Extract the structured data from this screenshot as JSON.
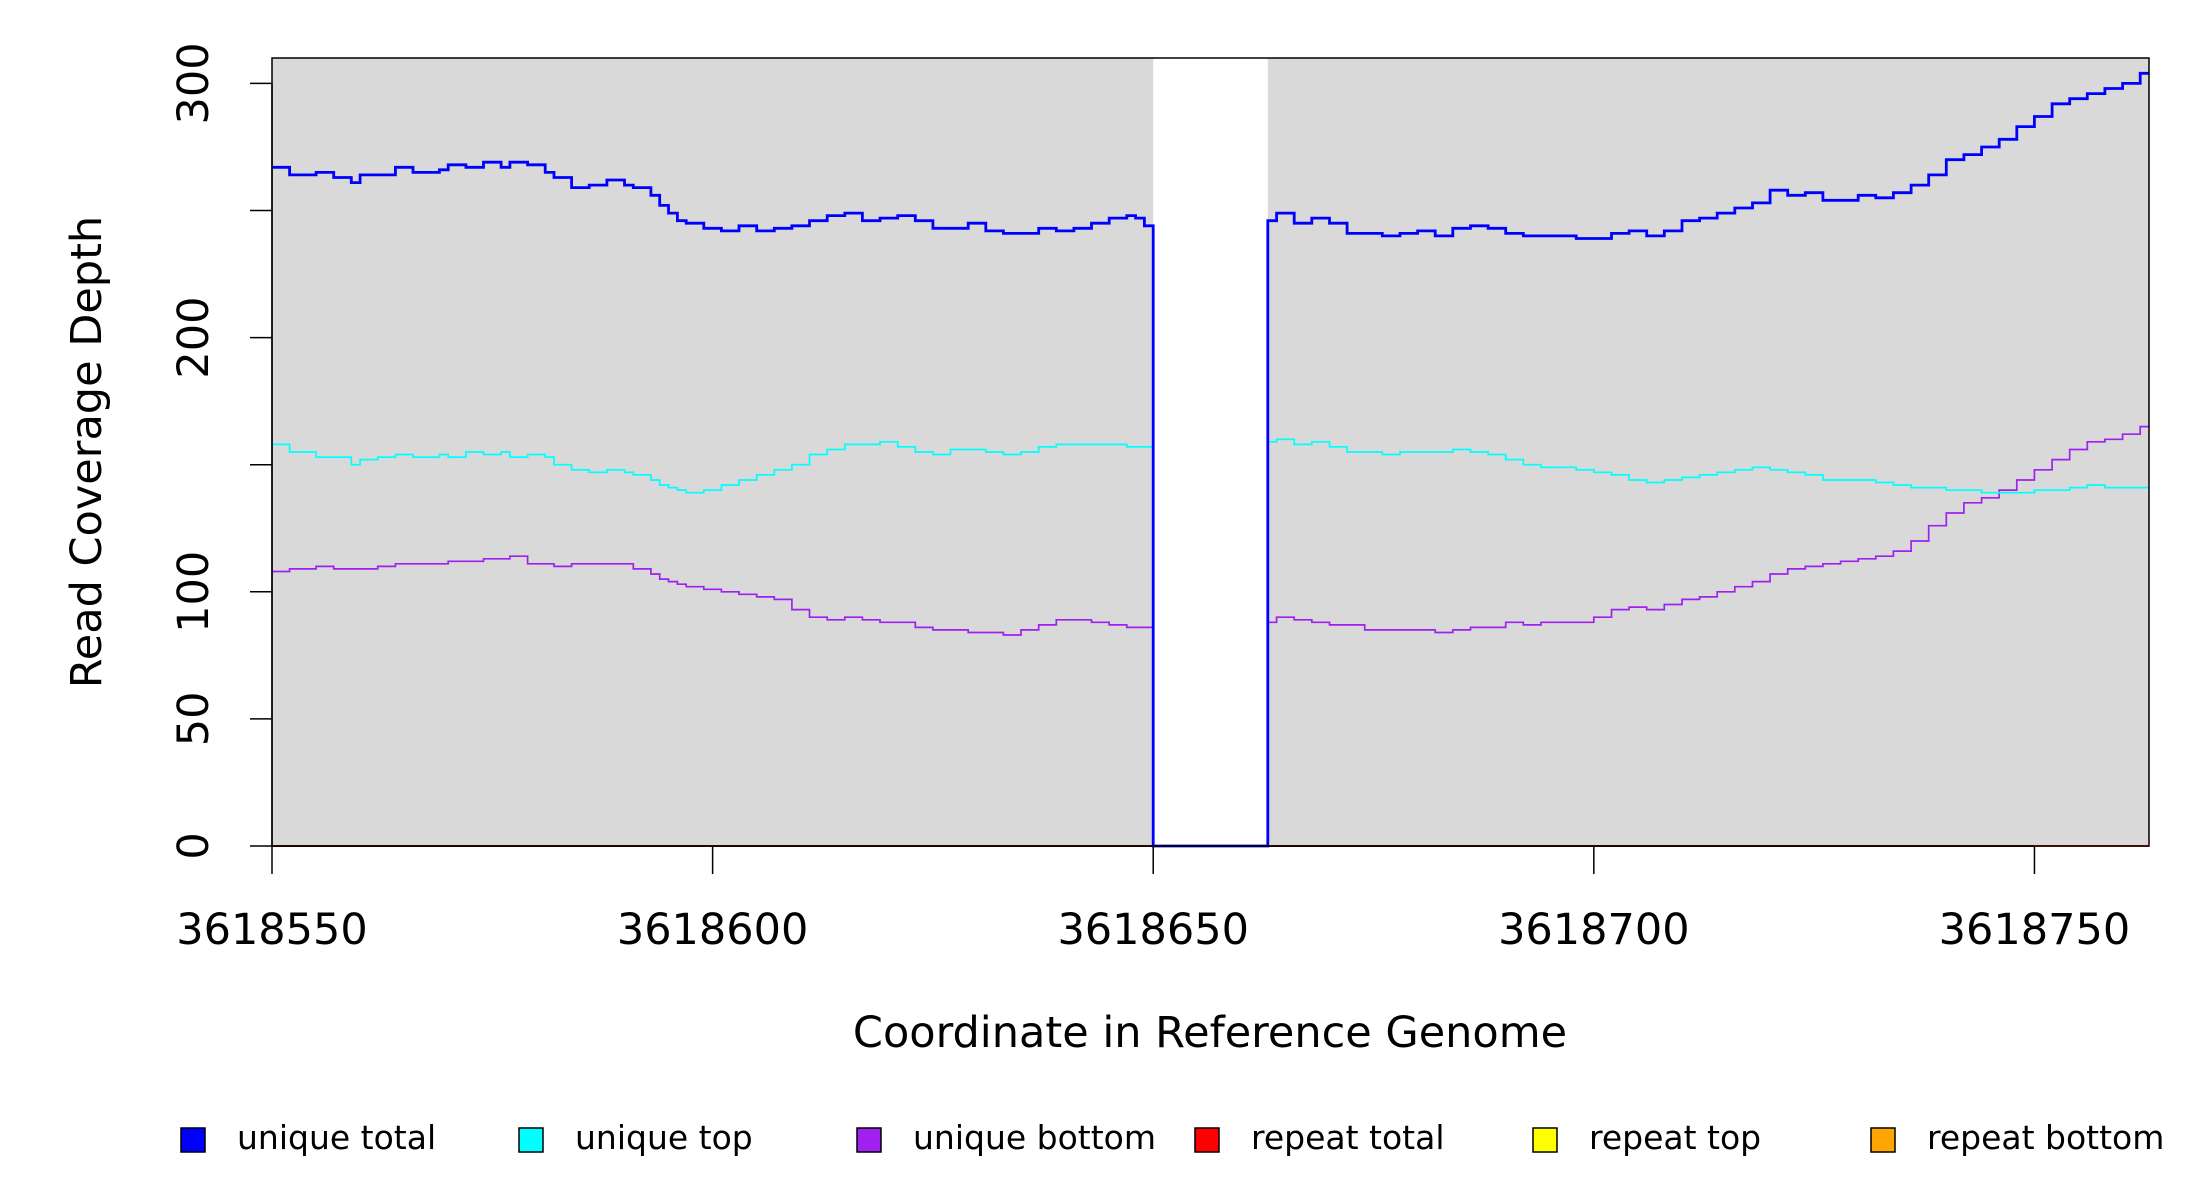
{
  "chart_data": {
    "type": "line",
    "title": "",
    "xlabel": "Coordinate in Reference Genome",
    "ylabel": "Read Coverage Depth",
    "xlim": [
      3618550,
      3618763
    ],
    "ylim": [
      0,
      310
    ],
    "x_ticks": [
      3618550,
      3618600,
      3618650,
      3618700,
      3618750
    ],
    "x_tick_labels": [
      "3618550",
      "3618600",
      "3618650",
      "3618700",
      "3618750"
    ],
    "y_ticks": [
      0,
      50,
      100,
      150,
      200,
      250,
      300
    ],
    "y_tick_labels": [
      "0",
      "50",
      "100",
      "",
      "200",
      "",
      "300"
    ],
    "background_color": "#d9d9d9",
    "gap_region": [
      3618650,
      3618663
    ],
    "grid": false,
    "legend_position": "bottom",
    "series": [
      {
        "name": "unique total",
        "color": "#0000ff",
        "step": true,
        "segments": [
          {
            "x": [
              3618550,
              3618552,
              3618555,
              3618557,
              3618559,
              3618560,
              3618562,
              3618564,
              3618566,
              3618569,
              3618570,
              3618572,
              3618574,
              3618576,
              3618577,
              3618579,
              3618581,
              3618582,
              3618584,
              3618586,
              3618588,
              3618590,
              3618591,
              3618593,
              3618594,
              3618595,
              3618596,
              3618597,
              3618599,
              3618601,
              3618603,
              3618605,
              3618607,
              3618609,
              3618611,
              3618613,
              3618615,
              3618617,
              3618619,
              3618621,
              3618623,
              3618625,
              3618627,
              3618629,
              3618631,
              3618633,
              3618635,
              3618637,
              3618639,
              3618641,
              3618643,
              3618645,
              3618647,
              3618648,
              3618649,
              3618650
            ],
            "y": [
              267,
              264,
              265,
              263,
              261,
              264,
              264,
              267,
              265,
              266,
              268,
              267,
              269,
              267,
              269,
              268,
              265,
              263,
              259,
              260,
              262,
              260,
              259,
              256,
              252,
              249,
              246,
              245,
              243,
              242,
              244,
              242,
              243,
              244,
              246,
              248,
              249,
              246,
              247,
              248,
              246,
              243,
              243,
              245,
              242,
              241,
              241,
              243,
              242,
              243,
              245,
              247,
              248,
              247,
              244,
              243
            ]
          },
          {
            "x": [
              3618663,
              3618664,
              3618666,
              3618668,
              3618670,
              3618672,
              3618674,
              3618676,
              3618678,
              3618680,
              3618682,
              3618684,
              3618686,
              3618688,
              3618690,
              3618692,
              3618694,
              3618696,
              3618698,
              3618700,
              3618702,
              3618704,
              3618706,
              3618708,
              3618710,
              3618712,
              3618714,
              3618716,
              3618718,
              3618720,
              3618722,
              3618724,
              3618726,
              3618728,
              3618730,
              3618732,
              3618734,
              3618736,
              3618738,
              3618740,
              3618742,
              3618744,
              3618746,
              3618748,
              3618750,
              3618752,
              3618754,
              3618756,
              3618758,
              3618760,
              3618762
            ],
            "y": [
              246,
              249,
              245,
              247,
              245,
              241,
              241,
              240,
              241,
              242,
              240,
              243,
              244,
              243,
              241,
              240,
              240,
              240,
              239,
              239,
              241,
              242,
              240,
              242,
              246,
              247,
              249,
              251,
              253,
              258,
              256,
              257,
              254,
              254,
              256,
              255,
              257,
              260,
              264,
              270,
              272,
              275,
              278,
              283,
              287,
              292,
              294,
              296,
              298,
              300,
              304
            ]
          }
        ]
      },
      {
        "name": "unique top",
        "color": "#00ffff",
        "step": true,
        "segments": [
          {
            "x": [
              3618550,
              3618552,
              3618555,
              3618557,
              3618559,
              3618560,
              3618562,
              3618564,
              3618566,
              3618569,
              3618570,
              3618572,
              3618574,
              3618576,
              3618577,
              3618579,
              3618581,
              3618582,
              3618584,
              3618586,
              3618588,
              3618590,
              3618591,
              3618593,
              3618594,
              3618595,
              3618596,
              3618597,
              3618599,
              3618601,
              3618603,
              3618605,
              3618607,
              3618609,
              3618611,
              3618613,
              3618615,
              3618617,
              3618619,
              3618621,
              3618623,
              3618625,
              3618627,
              3618629,
              3618631,
              3618633,
              3618635,
              3618637,
              3618639,
              3618641,
              3618643,
              3618645,
              3618647,
              3618648,
              3618649,
              3618650
            ],
            "y": [
              158,
              155,
              153,
              153,
              150,
              152,
              153,
              154,
              153,
              154,
              153,
              155,
              154,
              155,
              153,
              154,
              153,
              150,
              148,
              147,
              148,
              147,
              146,
              144,
              142,
              141,
              140,
              139,
              140,
              142,
              144,
              146,
              148,
              150,
              154,
              156,
              158,
              158,
              159,
              157,
              155,
              154,
              156,
              156,
              155,
              154,
              155,
              157,
              158,
              158,
              158,
              158,
              157,
              157,
              157,
              158
            ]
          },
          {
            "x": [
              3618663,
              3618664,
              3618666,
              3618668,
              3618670,
              3618672,
              3618674,
              3618676,
              3618678,
              3618680,
              3618682,
              3618684,
              3618686,
              3618688,
              3618690,
              3618692,
              3618694,
              3618696,
              3618698,
              3618700,
              3618702,
              3618704,
              3618706,
              3618708,
              3618710,
              3618712,
              3618714,
              3618716,
              3618718,
              3618720,
              3618722,
              3618724,
              3618726,
              3618728,
              3618730,
              3618732,
              3618734,
              3618736,
              3618738,
              3618740,
              3618742,
              3618744,
              3618746,
              3618748,
              3618750,
              3618752,
              3618754,
              3618756,
              3618758,
              3618760,
              3618762
            ],
            "y": [
              159,
              160,
              158,
              159,
              157,
              155,
              155,
              154,
              155,
              155,
              155,
              156,
              155,
              154,
              152,
              150,
              149,
              149,
              148,
              147,
              146,
              144,
              143,
              144,
              145,
              146,
              147,
              148,
              149,
              148,
              147,
              146,
              144,
              144,
              144,
              143,
              142,
              141,
              141,
              140,
              140,
              139,
              139,
              139,
              140,
              140,
              141,
              142,
              141,
              141,
              141
            ]
          }
        ]
      },
      {
        "name": "unique bottom",
        "color": "#a020f0",
        "step": true,
        "segments": [
          {
            "x": [
              3618550,
              3618552,
              3618555,
              3618557,
              3618559,
              3618560,
              3618562,
              3618564,
              3618566,
              3618569,
              3618570,
              3618572,
              3618574,
              3618576,
              3618577,
              3618579,
              3618581,
              3618582,
              3618584,
              3618586,
              3618588,
              3618590,
              3618591,
              3618593,
              3618594,
              3618595,
              3618596,
              3618597,
              3618599,
              3618601,
              3618603,
              3618605,
              3618607,
              3618609,
              3618611,
              3618613,
              3618615,
              3618617,
              3618619,
              3618621,
              3618623,
              3618625,
              3618627,
              3618629,
              3618631,
              3618633,
              3618635,
              3618637,
              3618639,
              3618641,
              3618643,
              3618645,
              3618647,
              3618648,
              3618649,
              3618650
            ],
            "y": [
              108,
              109,
              110,
              109,
              109,
              109,
              110,
              111,
              111,
              111,
              112,
              112,
              113,
              113,
              114,
              111,
              111,
              110,
              111,
              111,
              111,
              111,
              109,
              107,
              105,
              104,
              103,
              102,
              101,
              100,
              99,
              98,
              97,
              93,
              90,
              89,
              90,
              89,
              88,
              88,
              86,
              85,
              85,
              84,
              84,
              83,
              85,
              87,
              89,
              89,
              88,
              87,
              86,
              86,
              86,
              86
            ]
          },
          {
            "x": [
              3618663,
              3618664,
              3618666,
              3618668,
              3618670,
              3618672,
              3618674,
              3618676,
              3618678,
              3618680,
              3618682,
              3618684,
              3618686,
              3618688,
              3618690,
              3618692,
              3618694,
              3618696,
              3618698,
              3618700,
              3618702,
              3618704,
              3618706,
              3618708,
              3618710,
              3618712,
              3618714,
              3618716,
              3618718,
              3618720,
              3618722,
              3618724,
              3618726,
              3618728,
              3618730,
              3618732,
              3618734,
              3618736,
              3618738,
              3618740,
              3618742,
              3618744,
              3618746,
              3618748,
              3618750,
              3618752,
              3618754,
              3618756,
              3618758,
              3618760,
              3618762
            ],
            "y": [
              88,
              90,
              89,
              88,
              87,
              87,
              85,
              85,
              85,
              85,
              84,
              85,
              86,
              86,
              88,
              87,
              88,
              88,
              88,
              90,
              93,
              94,
              93,
              95,
              97,
              98,
              100,
              102,
              104,
              107,
              109,
              110,
              111,
              112,
              113,
              114,
              116,
              120,
              126,
              131,
              135,
              137,
              140,
              144,
              148,
              152,
              156,
              159,
              160,
              162,
              165
            ]
          }
        ]
      },
      {
        "name": "repeat total",
        "color": "#ff0000",
        "step": true,
        "segments": [
          {
            "x": [
              3618550,
              3618763
            ],
            "y": [
              0,
              0
            ]
          }
        ]
      },
      {
        "name": "repeat top",
        "color": "#ffff00",
        "step": true,
        "segments": [
          {
            "x": [
              3618550,
              3618763
            ],
            "y": [
              0,
              0
            ]
          }
        ]
      },
      {
        "name": "repeat bottom",
        "color": "#ffa500",
        "step": true,
        "segments": [
          {
            "x": [
              3618550,
              3618763
            ],
            "y": [
              0,
              0
            ]
          }
        ]
      }
    ]
  }
}
